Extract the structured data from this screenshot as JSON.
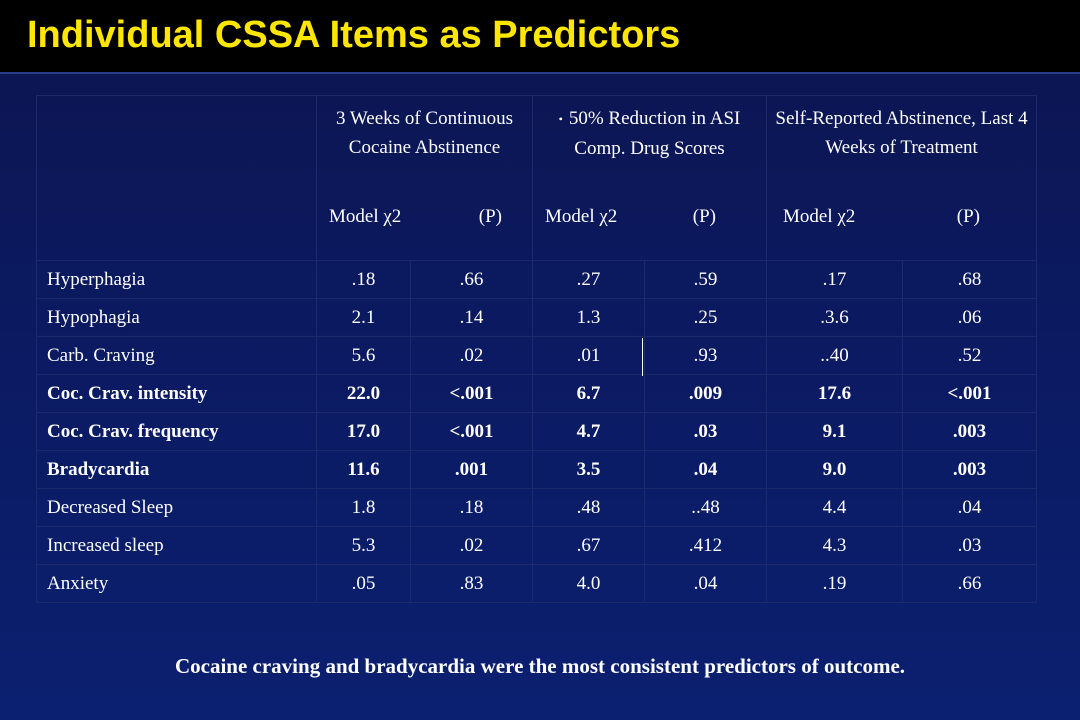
{
  "title": "Individual CSSA Items as Predictors",
  "header": {
    "groups": [
      {
        "title": "3 Weeks of Continuous Cocaine Abstinence",
        "model": "Model χ2",
        "p": "(P)"
      },
      {
        "title": "50% Reduction in ASI Comp. Drug Scores",
        "model": "Model χ2",
        "p": "(P)"
      },
      {
        "title": "Self-Reported Abstinence, Last 4 Weeks of Treatment",
        "model": "Model χ2",
        "p": "(P)"
      }
    ]
  },
  "rows": [
    {
      "label": "Hyperphagia",
      "cells": [
        ".18",
        ".66",
        ".27",
        ".59",
        ".17",
        ".68"
      ]
    },
    {
      "label": "Hypophagia",
      "cells": [
        "2.1",
        ".14",
        "1.3",
        ".25",
        ".3.6",
        ".06"
      ]
    },
    {
      "label": "Carb. Craving",
      "cells": [
        "5.6",
        ".02",
        ".01",
        ".93",
        "..40",
        ".52"
      ]
    },
    {
      "label": "Coc. Crav. intensity",
      "cells": [
        "22.0",
        "<.001",
        "6.7",
        ".009",
        "17.6",
        "<.001"
      ]
    },
    {
      "label": "Coc. Crav. frequency",
      "cells": [
        "17.0",
        "<.001",
        "4.7",
        ".03",
        "9.1",
        ".003"
      ]
    },
    {
      "label": "Bradycardia",
      "cells": [
        "11.6",
        ".001",
        "3.5",
        ".04",
        "9.0",
        ".003"
      ]
    },
    {
      "label": "Decreased Sleep",
      "cells": [
        "1.8",
        ".18",
        ".48",
        "..48",
        "4.4",
        ".04"
      ]
    },
    {
      "label": "Increased sleep",
      "cells": [
        "5.3",
        ".02",
        ".67",
        ".412",
        "4.3",
        ".03"
      ]
    },
    {
      "label": "Anxiety",
      "cells": [
        ".05",
        ".83",
        "4.0",
        ".04",
        ".19",
        ".66"
      ]
    }
  ],
  "footnote": "Cocaine craving and bradycardia were the most consistent predictors of outcome.",
  "colors": {
    "title": "#ffe600",
    "background": "#0b1a62",
    "text": "#ffffff"
  }
}
